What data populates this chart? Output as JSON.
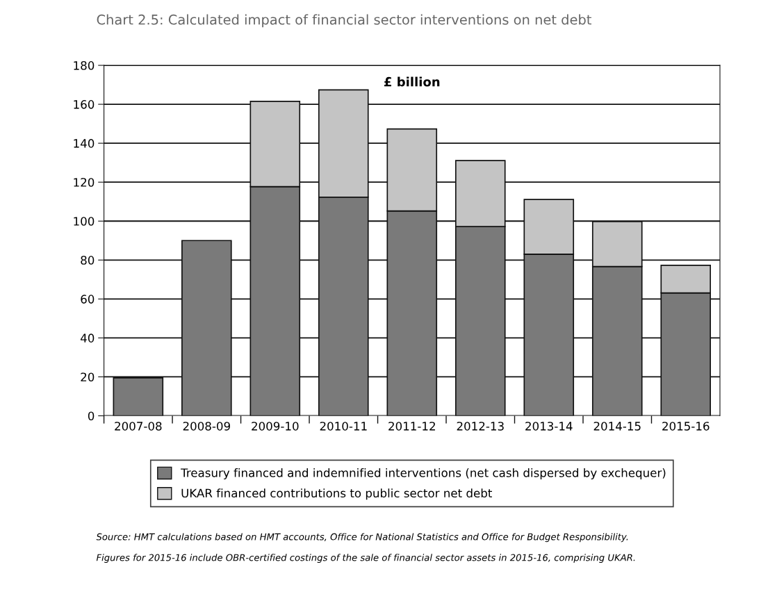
{
  "chart_data": {
    "type": "bar",
    "title": "Chart 2.5: Calculated impact of financial sector interventions on net debt",
    "categories": [
      "2007-08",
      "2008-09",
      "2009-10",
      "2010-11",
      "2011-12",
      "2012-13",
      "2013-14",
      "2014-15",
      "2015-16"
    ],
    "stacked": true,
    "series": [
      {
        "name": "Treasury financed and indemnified interventions (net cash dispersed by exchequer)",
        "color": "#7a7a7a",
        "values": [
          19.5,
          90,
          117.7,
          112.3,
          105.2,
          97.2,
          83.0,
          76.7,
          63.1
        ]
      },
      {
        "name": "UKAR financed contributions to public sector net debt",
        "color": "#c4c4c4",
        "values": [
          null,
          null,
          43.8,
          55.1,
          42.1,
          33.9,
          28.1,
          23.1,
          14.2
        ]
      }
    ],
    "ylim": [
      0,
      180
    ],
    "yticks": [
      0,
      20,
      40,
      60,
      80,
      100,
      120,
      140,
      160,
      180
    ],
    "grid": "y",
    "legend": "bottom",
    "annotations": [
      "£ billion",
      "Source: HMT calculations based on HMT accounts, Office for National Statistics and Office for Budget Responsibility.",
      "Figures for 2015-16 include OBR-certified costings of the sale of financial sector assets in 2015-16, comprising UKAR."
    ]
  }
}
